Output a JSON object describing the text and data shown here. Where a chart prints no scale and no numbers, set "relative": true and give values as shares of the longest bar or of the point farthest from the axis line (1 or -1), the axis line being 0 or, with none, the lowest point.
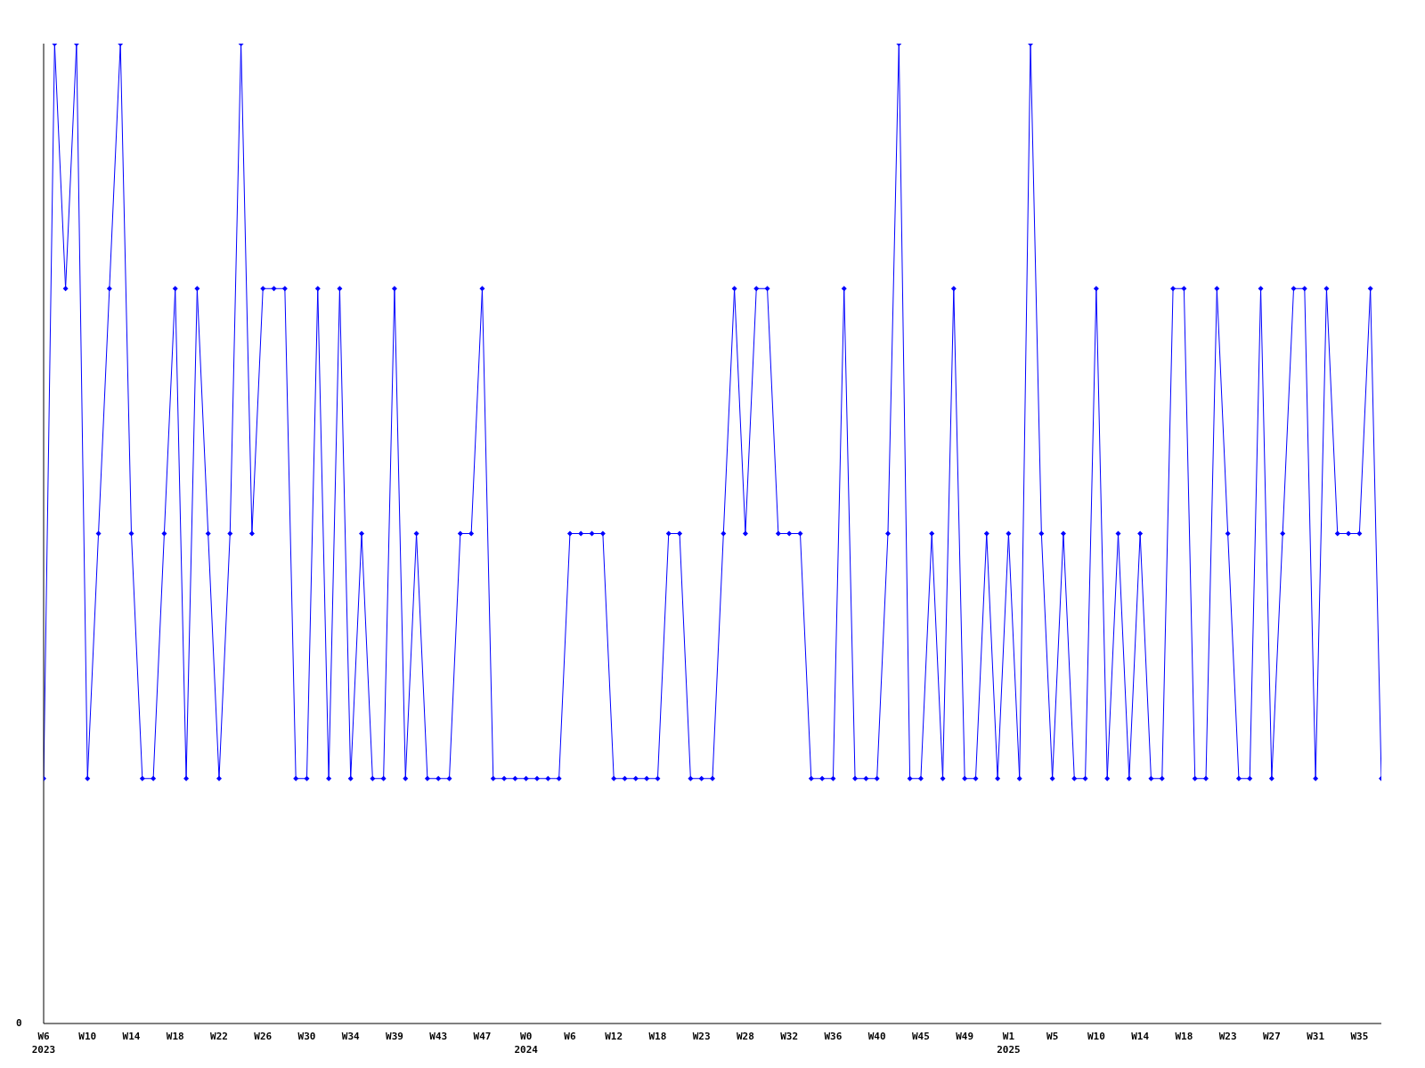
{
  "chart_data": {
    "type": "line",
    "relative": true,
    "annotations": [
      "0"
    ],
    "marker": "diamond",
    "line_style": "solid",
    "grid": false,
    "legend": false,
    "categories": [
      "W6\n2023",
      null,
      null,
      null,
      "W10",
      null,
      null,
      null,
      "W14",
      null,
      null,
      null,
      "W18",
      null,
      null,
      null,
      "W22",
      null,
      null,
      null,
      "W26",
      null,
      null,
      null,
      "W30",
      null,
      null,
      null,
      "W34",
      null,
      null,
      null,
      "W39",
      null,
      null,
      null,
      "W43",
      null,
      null,
      null,
      "W47",
      null,
      null,
      null,
      "W0\n2024",
      null,
      null,
      null,
      "W6",
      null,
      null,
      null,
      "W12",
      null,
      null,
      null,
      "W18",
      null,
      null,
      null,
      "W23",
      null,
      null,
      null,
      "W28",
      null,
      null,
      null,
      "W32",
      null,
      null,
      null,
      "W36",
      null,
      null,
      null,
      "W40",
      null,
      null,
      null,
      "W45",
      null,
      null,
      null,
      "W49",
      null,
      null,
      null,
      "W1\n2025",
      null,
      null,
      null,
      "W5",
      null,
      null,
      null,
      "W10",
      null,
      null,
      null,
      "W14",
      null,
      null,
      null,
      "W18",
      null,
      null,
      null,
      "W23",
      null,
      null,
      null,
      "W27",
      null,
      null,
      null,
      "W31",
      null,
      null,
      null,
      "W35",
      null,
      null
    ],
    "series": [
      {
        "color": "#0000ff",
        "values": [
          0.25,
          1,
          0.75,
          1,
          0.25,
          0.5,
          0.75,
          1,
          0.5,
          0.25,
          0.25,
          0.5,
          0.75,
          0.25,
          0.75,
          0.5,
          0.25,
          0.5,
          1,
          0.5,
          0.75,
          0.75,
          0.75,
          0.25,
          0.25,
          0.75,
          0.25,
          0.75,
          0.25,
          0.5,
          0.25,
          0.25,
          0.75,
          0.25,
          0.5,
          0.25,
          0.25,
          0.25,
          0.5,
          0.5,
          0.75,
          0.25,
          0.25,
          0.25,
          0.25,
          0.25,
          0.25,
          0.25,
          0.5,
          0.5,
          0.5,
          0.5,
          0.25,
          0.25,
          0.25,
          0.25,
          0.25,
          0.5,
          0.5,
          0.25,
          0.25,
          0.25,
          0.5,
          0.75,
          0.5,
          0.75,
          0.75,
          0.5,
          0.5,
          0.5,
          0.25,
          0.25,
          0.25,
          0.75,
          0.25,
          0.25,
          0.25,
          0.5,
          1,
          0.25,
          0.25,
          0.5,
          0.25,
          0.75,
          0.25,
          0.25,
          0.5,
          0.25,
          0.5,
          0.25,
          1,
          0.5,
          0.25,
          0.5,
          0.25,
          0.25,
          0.75,
          0.25,
          0.5,
          0.25,
          0.5,
          0.25,
          0.25,
          0.75,
          0.75,
          0.25,
          0.25,
          0.75,
          0.5,
          0.25,
          0.25,
          0.75,
          0.25,
          0.5,
          0.75,
          0.75,
          0.25,
          0.75,
          0.5,
          0.5,
          0.5,
          0.75,
          0.25
        ]
      }
    ]
  }
}
